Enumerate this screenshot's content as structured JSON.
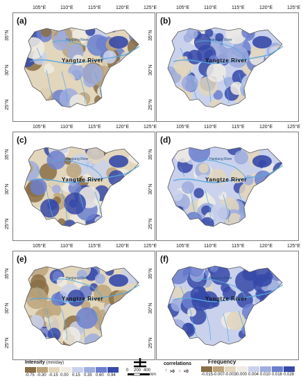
{
  "panels": [
    {
      "label": "(a)"
    },
    {
      "label": "(b)"
    },
    {
      "label": "(c)"
    },
    {
      "label": "(d)"
    },
    {
      "label": "(e)"
    },
    {
      "label": "(f)"
    }
  ],
  "lon_ticks": [
    "105°E",
    "110°E",
    "115°E",
    "120°E",
    "125°E"
  ],
  "lat_ticks": [
    "35°N",
    "30°N",
    "25°N"
  ],
  "map_labels": {
    "river_main": "Yangtze River",
    "river_hanjiang": "Hanjiang River"
  },
  "intensity_legend": {
    "title": "Intensity",
    "unit": "(mm/day)",
    "values": [
      "-0.75",
      "-0.30",
      "-0.15",
      "0.00",
      "0.15",
      "0.35",
      "0.60",
      "0.94"
    ],
    "colors": [
      "#8a6e45",
      "#bca47c",
      "#e2d6bd",
      "#f0ece4",
      "#c9d1ec",
      "#9fadde",
      "#6c7fce",
      "#3649a8"
    ]
  },
  "frequency_legend": {
    "title": "Frequency",
    "values": [
      "-0.015",
      "-0.007",
      "-0.003",
      "0.000",
      "0.004",
      "0.010",
      "0.016",
      "0.028"
    ],
    "colors": [
      "#8a6e45",
      "#bca47c",
      "#e2d6bd",
      "#f0ece4",
      "#c9d1ec",
      "#9fadde",
      "#6c7fce",
      "#3649a8"
    ]
  },
  "scale_bar": {
    "labels": [
      "0",
      "200",
      "400"
    ],
    "unit": "km"
  },
  "correlations": {
    "title": "correlations",
    "pos_label": ">0",
    "neg_label": "<0"
  },
  "colors": {
    "river": "#57a8de",
    "border": "#7a7a7a"
  }
}
